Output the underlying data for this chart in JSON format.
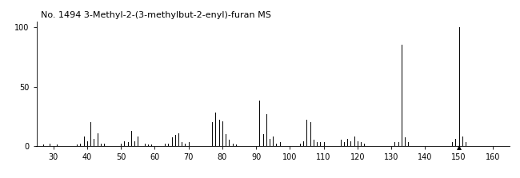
{
  "title": "No. 1494 3-Methyl-2-(3-methylbut-2-enyl)-furan MS",
  "xlim": [
    25,
    165
  ],
  "ylim": [
    0,
    105
  ],
  "xticks": [
    30,
    40,
    50,
    60,
    70,
    80,
    90,
    100,
    110,
    120,
    130,
    140,
    150,
    160
  ],
  "yticks": [
    0,
    50,
    100
  ],
  "peaks": [
    [
      27,
      1
    ],
    [
      29,
      2
    ],
    [
      31,
      1
    ],
    [
      37,
      1
    ],
    [
      38,
      2
    ],
    [
      39,
      8
    ],
    [
      40,
      4
    ],
    [
      41,
      20
    ],
    [
      42,
      6
    ],
    [
      43,
      11
    ],
    [
      44,
      2
    ],
    [
      45,
      2
    ],
    [
      50,
      2
    ],
    [
      51,
      4
    ],
    [
      52,
      3
    ],
    [
      53,
      13
    ],
    [
      54,
      4
    ],
    [
      55,
      8
    ],
    [
      57,
      2
    ],
    [
      58,
      1
    ],
    [
      59,
      1
    ],
    [
      63,
      2
    ],
    [
      64,
      2
    ],
    [
      65,
      7
    ],
    [
      66,
      9
    ],
    [
      67,
      11
    ],
    [
      68,
      3
    ],
    [
      69,
      2
    ],
    [
      70,
      3
    ],
    [
      77,
      20
    ],
    [
      78,
      28
    ],
    [
      79,
      22
    ],
    [
      80,
      21
    ],
    [
      81,
      10
    ],
    [
      82,
      5
    ],
    [
      83,
      2
    ],
    [
      84,
      1
    ],
    [
      91,
      38
    ],
    [
      92,
      10
    ],
    [
      93,
      27
    ],
    [
      94,
      6
    ],
    [
      95,
      8
    ],
    [
      96,
      2
    ],
    [
      97,
      3
    ],
    [
      103,
      2
    ],
    [
      104,
      4
    ],
    [
      105,
      22
    ],
    [
      106,
      20
    ],
    [
      107,
      5
    ],
    [
      108,
      3
    ],
    [
      109,
      3
    ],
    [
      110,
      3
    ],
    [
      115,
      5
    ],
    [
      116,
      3
    ],
    [
      117,
      6
    ],
    [
      118,
      4
    ],
    [
      119,
      8
    ],
    [
      120,
      4
    ],
    [
      121,
      3
    ],
    [
      122,
      2
    ],
    [
      131,
      3
    ],
    [
      132,
      3
    ],
    [
      133,
      85
    ],
    [
      134,
      7
    ],
    [
      135,
      3
    ],
    [
      148,
      3
    ],
    [
      149,
      6
    ],
    [
      150,
      100
    ],
    [
      151,
      8
    ],
    [
      152,
      3
    ]
  ],
  "marker_peak": 150,
  "background_color": "#ffffff",
  "line_color": "#000000",
  "title_fontsize": 8,
  "tick_fontsize": 7
}
